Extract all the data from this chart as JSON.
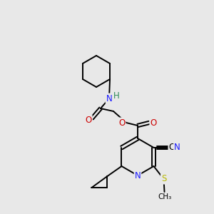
{
  "bg_color": "#e8e8e8",
  "atom_colors": {
    "C": "#000000",
    "N": "#1a1aff",
    "O": "#cc0000",
    "S": "#b8b800",
    "H": "#2e8b57"
  },
  "figsize": [
    3.0,
    3.0
  ],
  "dpi": 100
}
